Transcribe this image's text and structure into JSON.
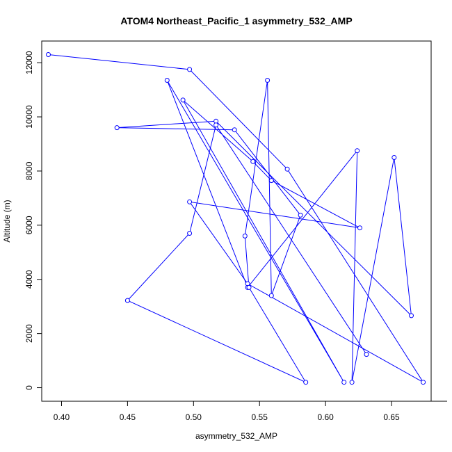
{
  "chart_data": {
    "type": "line",
    "title": "ATOM4 Northeast_Pacific_1 asymmetry_532_AMP",
    "xlabel": "asymmetry_532_AMP",
    "ylabel": "Altitude (m)",
    "xlim": [
      0.385,
      0.68
    ],
    "ylim": [
      -500,
      12800
    ],
    "xticks": [
      0.4,
      0.45,
      0.5,
      0.55,
      0.6,
      0.65
    ],
    "xtick_labels": [
      "0.40",
      "0.45",
      "0.50",
      "0.55",
      "0.60",
      "0.65"
    ],
    "yticks": [
      0,
      2000,
      4000,
      6000,
      8000,
      10000,
      12000
    ],
    "ytick_labels": [
      "0",
      "2000",
      "4000",
      "6000",
      "8000",
      "10000",
      "12000"
    ],
    "grid": false,
    "line_color": "#0000ff",
    "marker": "open-circle",
    "series": [
      {
        "x": [
          0.39,
          0.497,
          0.571,
          0.674,
          0.541,
          0.497,
          0.626,
          0.559,
          0.545,
          0.492,
          0.614,
          0.48,
          0.541,
          0.624,
          0.62,
          0.652,
          0.665,
          0.517,
          0.442,
          0.531,
          0.581,
          0.559,
          0.556,
          0.539,
          0.542,
          0.585,
          0.45,
          0.497,
          0.517,
          0.631
        ],
        "y": [
          12300,
          11750,
          8070,
          200,
          3840,
          6860,
          5900,
          7650,
          8350,
          10620,
          200,
          11350,
          3700,
          8750,
          200,
          8500,
          2660,
          9840,
          9600,
          9520,
          6370,
          3400,
          11350,
          5600,
          3700,
          200,
          3220,
          5700,
          9700,
          1230
        ]
      }
    ]
  }
}
